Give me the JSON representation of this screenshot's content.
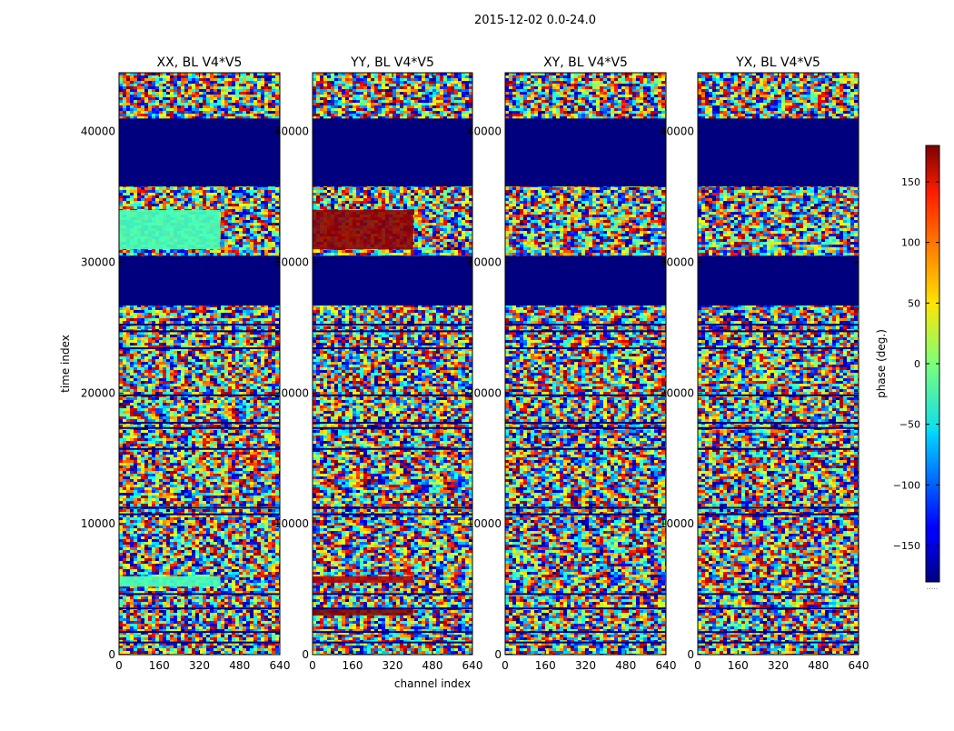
{
  "chart_data": {
    "type": "heatmap",
    "suptitle": "2015-12-02 0.0-24.0",
    "xlabel": "channel index",
    "ylabel": "time index",
    "xlim": [
      0,
      640
    ],
    "ylim": [
      0,
      44500
    ],
    "x_ticks": [
      0,
      160,
      320,
      480,
      640
    ],
    "y_ticks": [
      0,
      10000,
      20000,
      30000,
      40000
    ],
    "panels": [
      {
        "title": "XX, BL V4*V5",
        "flagged_time_ranges": [
          [
            26700,
            30500
          ],
          [
            35800,
            41000
          ]
        ],
        "dominant_phase": "-20",
        "notes": "Uniform bands near -20 deg in left half at t~5000-6000 and t~31000-34000"
      },
      {
        "title": "YY, BL V4*V5",
        "flagged_time_ranges": [
          [
            26700,
            30500
          ],
          [
            35800,
            41000
          ]
        ],
        "dominant_phase": "180",
        "notes": "Red/dark-red bands (~180 deg) at t~3000-3500, t~5500-6000 and t~31000-34000"
      },
      {
        "title": "XY, BL V4*V5",
        "flagged_time_ranges": [
          [
            26700,
            30500
          ],
          [
            35800,
            41000
          ]
        ],
        "dominant_phase": "mixed",
        "notes": "Noisy phase throughout"
      },
      {
        "title": "YX, BL V4*V5",
        "flagged_time_ranges": [
          [
            26700,
            30500
          ],
          [
            35800,
            41000
          ]
        ],
        "dominant_phase": "mixed",
        "notes": "Noisy phase throughout"
      }
    ],
    "colorbar": {
      "label": "phase (deg.)",
      "range": [
        -180,
        180
      ],
      "ticks": [
        -150,
        -100,
        -50,
        0,
        50,
        100,
        150
      ],
      "tick_labels": [
        "−150",
        "−100",
        "−50",
        "0",
        "50",
        "100",
        "150"
      ],
      "colormap": "jet",
      "flag_color": "#00007f",
      "underflow_marker": "....."
    },
    "grid": false,
    "legend": "none"
  }
}
